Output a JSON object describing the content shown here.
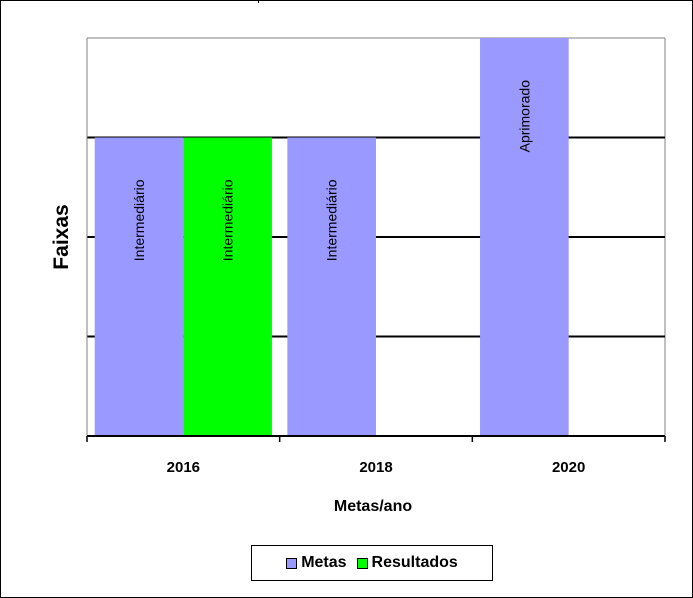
{
  "chart_data": {
    "type": "bar",
    "title": "",
    "xlabel": "Metas/ano",
    "ylabel": "Faixas",
    "categories": [
      "2016",
      "2018",
      "2020"
    ],
    "ylim": [
      0,
      4
    ],
    "grid": true,
    "legend_position": "bottom",
    "series": [
      {
        "name": "Metas",
        "color": "#9999ff",
        "values": [
          3,
          3,
          4
        ],
        "labels": [
          "Intermediário",
          "Intermediário",
          "Aprimorado"
        ]
      },
      {
        "name": "Resultados",
        "color": "#00ff00",
        "values": [
          3,
          null,
          null
        ],
        "labels": [
          "Intermediário",
          "",
          ""
        ]
      }
    ]
  }
}
